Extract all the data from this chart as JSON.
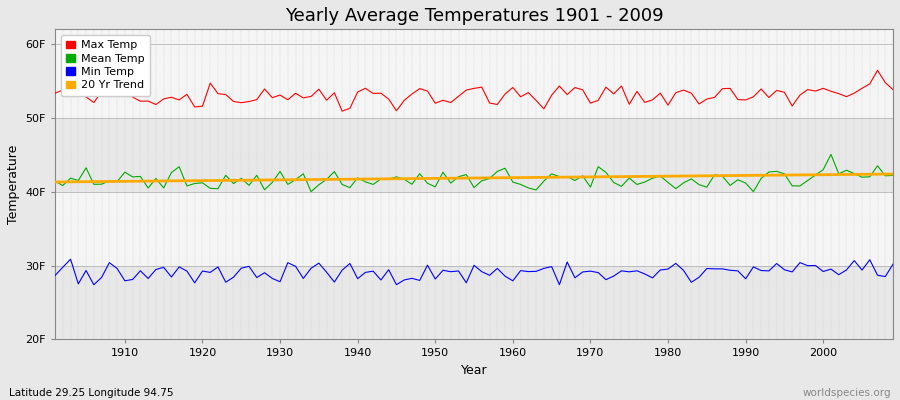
{
  "title": "Yearly Average Temperatures 1901 - 2009",
  "xlabel": "Year",
  "ylabel": "Temperature",
  "xlim": [
    1901,
    2009
  ],
  "ylim": [
    20,
    62
  ],
  "yticks": [
    20,
    30,
    40,
    50,
    60
  ],
  "ytick_labels": [
    "20F",
    "30F",
    "40F",
    "50F",
    "60F"
  ],
  "xticks": [
    1910,
    1920,
    1930,
    1940,
    1950,
    1960,
    1970,
    1980,
    1990,
    2000
  ],
  "legend_labels": [
    "Max Temp",
    "Mean Temp",
    "Min Temp",
    "20 Yr Trend"
  ],
  "legend_colors": [
    "#ff0000",
    "#00aa00",
    "#0000ff",
    "#ffaa00"
  ],
  "bg_color": "#e8e8e8",
  "plot_bg": "#f2f2f2",
  "band_light": "#f5f5f5",
  "band_dark": "#e8e8e8",
  "grid_color": "#cccccc",
  "lat_lon_text": "Latitude 29.25 Longitude 94.75",
  "watermark": "worldspecies.org",
  "max_temp_base": 53.0,
  "mean_temp_base": 41.5,
  "min_temp_base": 29.0,
  "trend_slope": 0.012,
  "seed": 42
}
